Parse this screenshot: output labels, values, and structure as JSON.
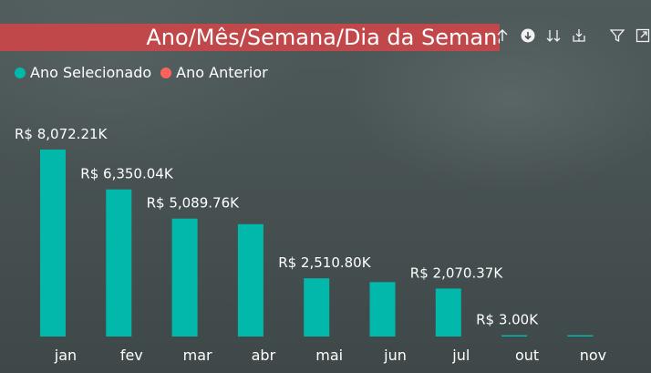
{
  "title": "Ano/Mês/Semana/Dia da Semana",
  "toolbar": {
    "icons": [
      "arrow-up-icon",
      "arrow-down-circle-icon",
      "double-arrow-down-icon",
      "expand-down-icon",
      "filter-icon",
      "focus-mode-icon"
    ]
  },
  "legend": [
    {
      "label": "Ano Selecionado",
      "color": "#01b8aa"
    },
    {
      "label": "Ano Anterior",
      "color": "#fd625e"
    }
  ],
  "chart_data": {
    "type": "bar",
    "categories": [
      "jan",
      "fev",
      "mar",
      "abr",
      "mai",
      "jun",
      "jul",
      "out",
      "nov"
    ],
    "series": [
      {
        "name": "Ano Selecionado",
        "color": "#01b8aa",
        "values": [
          8072.21,
          6350.04,
          5089.76,
          4850.0,
          2510.8,
          2350.0,
          2070.37,
          3.0,
          3.0
        ]
      }
    ],
    "data_labels": [
      "R$ 8,072.21K",
      "R$ 6,350.04K",
      "R$ 5,089.76K",
      "",
      "R$ 2,510.80K",
      "",
      "R$ 2,070.37K",
      "R$ 3.00K",
      ""
    ],
    "ylim": [
      0,
      8072.21
    ],
    "grid": false,
    "legend_position": "top-left"
  }
}
